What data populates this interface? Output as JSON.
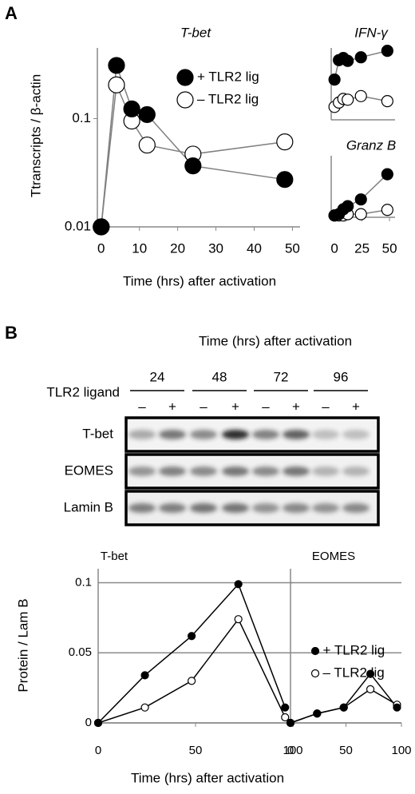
{
  "panel_labels": [
    "A",
    "B"
  ],
  "panel_b_title": "Time (hrs) after activation",
  "panel_b_x_label": "Time (hrs) after activation",
  "blot": {
    "row_label": "TLR2 ligand",
    "times": [
      24,
      48,
      72,
      96
    ],
    "signs": [
      "–",
      "+",
      "–",
      "+",
      "–",
      "+",
      "–",
      "+"
    ],
    "lanes": [
      "T-bet",
      "EOMES",
      "Lamin B"
    ]
  },
  "chart_data": [
    {
      "type": "line",
      "title": "T-bet",
      "y_label": "Ttranscripts / β-actin",
      "x_label": "Time (hrs) after activation",
      "log_y": true,
      "xlim": [
        -1,
        52
      ],
      "xticks": [
        0,
        10,
        20,
        30,
        40,
        50
      ],
      "ylim": [
        0.01,
        0.45
      ],
      "yticks": [
        0.01,
        0.1
      ],
      "legend": "upper-right",
      "series": [
        {
          "name": "+ TLR2 lig",
          "color": "#808080",
          "marker_fill": "#000000",
          "x": [
            0,
            4,
            8,
            12,
            24,
            48
          ],
          "values": [
            0.01,
            0.31,
            0.123,
            0.109,
            0.0366,
            0.0274
          ]
        },
        {
          "name": "– TLR2 lig",
          "color": "#808080",
          "marker_fill": "#ffffff",
          "x": [
            0,
            4,
            8,
            12,
            24,
            48
          ],
          "values": [
            0.01,
            0.205,
            0.095,
            0.057,
            0.047,
            0.061
          ]
        }
      ]
    },
    {
      "type": "line",
      "title": "IFN-γ",
      "xlim": [
        -3,
        55
      ],
      "ylim": [
        0,
        100
      ],
      "series": [
        {
          "color": "#808080",
          "marker_fill": "#000000",
          "x": [
            0,
            4,
            8,
            12,
            24,
            48
          ],
          "values": [
            56,
            83,
            86,
            82,
            87,
            96
          ]
        },
        {
          "color": "#808080",
          "marker_fill": "#ffffff",
          "x": [
            0,
            4,
            8,
            12,
            24,
            48
          ],
          "values": [
            18,
            24,
            29,
            28,
            33,
            26
          ]
        }
      ]
    },
    {
      "type": "line",
      "title": "Granz B",
      "xlim": [
        -3,
        55
      ],
      "xticks": [
        0,
        25,
        50
      ],
      "ylim": [
        0,
        100
      ],
      "series": [
        {
          "color": "#808080",
          "marker_fill": "#000000",
          "x": [
            0,
            4,
            8,
            12,
            24,
            48
          ],
          "values": [
            3,
            5,
            13,
            18,
            29,
            70
          ]
        },
        {
          "color": "#808080",
          "marker_fill": "#ffffff",
          "x": [
            0,
            4,
            8,
            12,
            24,
            48
          ],
          "values": [
            3,
            3,
            3,
            5,
            5,
            12
          ]
        }
      ]
    },
    {
      "type": "line",
      "title": "T-bet",
      "y_label": "Protein / Lam B",
      "xlim": [
        0,
        100
      ],
      "xticks": [
        0,
        50,
        100
      ],
      "ylim": [
        0,
        0.11
      ],
      "yticks": [
        0,
        0.05,
        0.1
      ],
      "grid": true,
      "series": [
        {
          "color": "#000000",
          "marker_fill": "#000000",
          "x": [
            0,
            24,
            48,
            72,
            96
          ],
          "values": [
            0,
            0.034,
            0.062,
            0.099,
            0.011
          ]
        },
        {
          "color": "#000000",
          "marker_fill": "#ffffff",
          "x": [
            0,
            24,
            48,
            72,
            96
          ],
          "values": [
            0,
            0.011,
            0.03,
            0.074,
            0.004
          ]
        }
      ]
    },
    {
      "type": "line",
      "title": "EOMES",
      "xlim": [
        0,
        100
      ],
      "xticks": [
        0,
        50,
        100
      ],
      "ylim": [
        0,
        0.11
      ],
      "yticks": [
        0,
        0.05,
        0.1
      ],
      "ytick_labels": false,
      "grid": true,
      "legend": "upper-right",
      "series": [
        {
          "name": "+ TLR2 lig",
          "color": "#000000",
          "marker_fill": "#000000",
          "x": [
            0,
            24,
            48,
            72,
            96
          ],
          "values": [
            0,
            0.0067,
            0.011,
            0.035,
            0.011
          ]
        },
        {
          "name": "– TLR2 lig",
          "color": "#000000",
          "marker_fill": "#ffffff",
          "x": [
            0,
            24,
            48,
            72,
            96
          ],
          "values": [
            0,
            0.0067,
            0.011,
            0.024,
            0.013
          ]
        }
      ]
    }
  ]
}
